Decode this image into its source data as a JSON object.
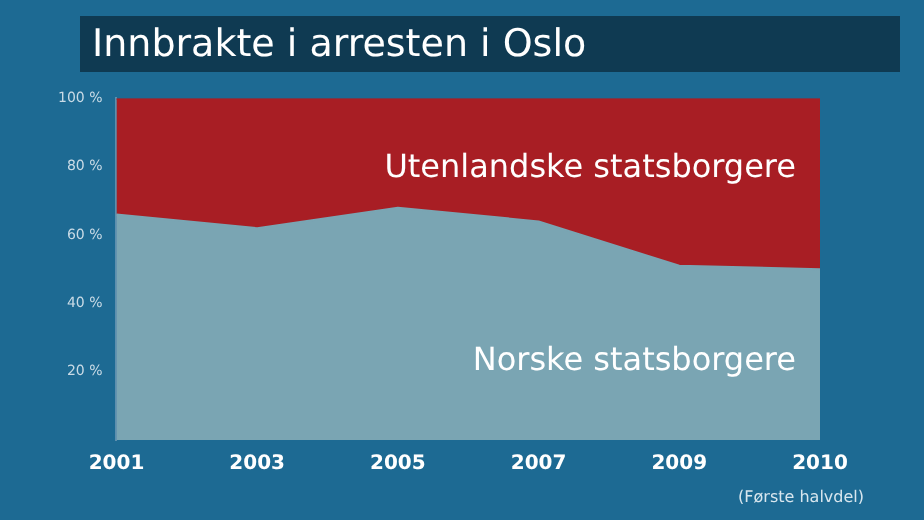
{
  "chart_data": {
    "type": "area",
    "title": "Innbrakte i arresten i Oslo",
    "stacked": true,
    "categories": [
      "2001",
      "2003",
      "2005",
      "2007",
      "2009",
      "2010"
    ],
    "series": [
      {
        "name": "Norske statsborgere",
        "color": "#7aa5b3",
        "values": [
          66,
          62,
          68,
          64,
          51,
          50
        ]
      },
      {
        "name": "Utenlandske statsborgere",
        "color": "#a81e24",
        "values": [
          34,
          38,
          32,
          36,
          49,
          50
        ]
      }
    ],
    "ylim": [
      0,
      100
    ],
    "yticks": [
      {
        "value": 20,
        "label": "20 %"
      },
      {
        "value": 40,
        "label": "40 %"
      },
      {
        "value": 60,
        "label": "60 %"
      },
      {
        "value": 80,
        "label": "80 %"
      },
      {
        "value": 100,
        "label": "100 %"
      }
    ],
    "grid": false,
    "legend": false,
    "annotations": [
      "(Første halvdel)"
    ]
  }
}
